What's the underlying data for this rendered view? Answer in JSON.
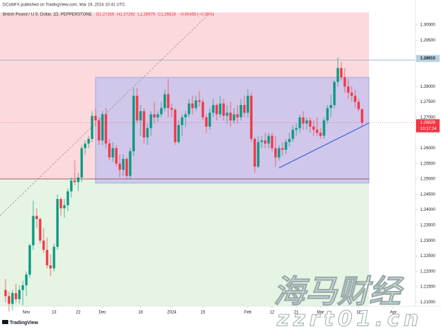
{
  "header": {
    "publisher": "DCottiFX published on TradingView.com, Mar 19, 2024 10:41 UTC",
    "logo": "TradingView"
  },
  "watermark": {
    "cn": "海马财经",
    "url": "zzrt01.cn"
  },
  "chart_data": {
    "type": "candlestick",
    "title": "British Pound / U.S. Dollar, 1D, PEPPERSTONE",
    "legend_values": [
      "O1.27265",
      "H1.27292",
      "L1.26675",
      "C1.26828",
      "−0.00456 (−0.36%)"
    ],
    "up_color": "#089981",
    "down_color": "#f23645",
    "grid": false,
    "xlim": [
      -1.6,
      118.4
    ],
    "xticks": [
      {
        "value": 6,
        "label": "Nov"
      },
      {
        "value": 14,
        "label": "13"
      },
      {
        "value": 21,
        "label": "22"
      },
      {
        "value": 28,
        "label": "Dec"
      },
      {
        "value": 39,
        "label": "18"
      },
      {
        "value": 48,
        "label": "2024"
      },
      {
        "value": 57,
        "label": "15"
      },
      {
        "value": 70,
        "label": "Feb"
      },
      {
        "value": 77,
        "label": "12"
      },
      {
        "value": 84,
        "label": "21"
      },
      {
        "value": 91,
        "label": "Mar"
      },
      {
        "value": 102,
        "label": "18"
      },
      {
        "value": 112,
        "label": "Apr"
      }
    ],
    "ylim": [
      1.20875,
      1.30404
    ],
    "yticks": [
      {
        "value": 1.3,
        "label": "1.30000"
      },
      {
        "value": 1.295,
        "label": "1.29500"
      },
      {
        "value": 1.28,
        "label": "1.28000"
      },
      {
        "value": 1.275,
        "label": "1.27500"
      },
      {
        "value": 1.27,
        "label": "1.27000"
      },
      {
        "value": 1.26,
        "label": "1.26000"
      },
      {
        "value": 1.255,
        "label": "1.25500"
      },
      {
        "value": 1.25,
        "label": "1.25000"
      },
      {
        "value": 1.245,
        "label": "1.24500"
      },
      {
        "value": 1.24,
        "label": "1.24000"
      },
      {
        "value": 1.235,
        "label": "1.23500"
      },
      {
        "value": 1.23,
        "label": "1.23000"
      },
      {
        "value": 1.225,
        "label": "1.22500"
      },
      {
        "value": 1.22,
        "label": "1.22000"
      },
      {
        "value": 1.215,
        "label": "1.21500"
      },
      {
        "value": 1.21,
        "label": "1.21000"
      }
    ],
    "level_label": {
      "value": 1.2891,
      "label": "1.28910"
    },
    "last_price": {
      "value": 1.26828,
      "label": "1.26828"
    },
    "countdown": "10:17:24",
    "ohlc": [
      [
        1.214,
        1.2175,
        1.21,
        1.212
      ],
      [
        1.212,
        1.2135,
        1.207,
        1.2095
      ],
      [
        1.2095,
        1.214,
        1.2075,
        1.213
      ],
      [
        1.213,
        1.216,
        1.21,
        1.211
      ],
      [
        1.211,
        1.2155,
        1.2095,
        1.214
      ],
      [
        1.214,
        1.217,
        1.209,
        1.2155
      ],
      [
        1.2155,
        1.22,
        1.212,
        1.219
      ],
      [
        1.219,
        1.229,
        1.218,
        1.2285
      ],
      [
        1.2285,
        1.243,
        1.227,
        1.238
      ],
      [
        1.238,
        1.2405,
        1.234,
        1.237
      ],
      [
        1.237,
        1.2375,
        1.229,
        1.23
      ],
      [
        1.23,
        1.234,
        1.226,
        1.227
      ],
      [
        1.227,
        1.231,
        1.221,
        1.222
      ],
      [
        1.222,
        1.2255,
        1.2185,
        1.221
      ],
      [
        1.221,
        1.229,
        1.22,
        1.228
      ],
      [
        1.228,
        1.245,
        1.227,
        1.2435
      ],
      [
        1.2435,
        1.244,
        1.238,
        1.2405
      ],
      [
        1.2405,
        1.2435,
        1.2375,
        1.2415
      ],
      [
        1.2415,
        1.247,
        1.2395,
        1.246
      ],
      [
        1.246,
        1.2505,
        1.244,
        1.2495
      ],
      [
        1.2495,
        1.256,
        1.248,
        1.249
      ],
      [
        1.249,
        1.252,
        1.246,
        1.2505
      ],
      [
        1.2505,
        1.261,
        1.249,
        1.26
      ],
      [
        1.26,
        1.2625,
        1.258,
        1.2615
      ],
      [
        1.2615,
        1.264,
        1.26,
        1.263
      ],
      [
        1.263,
        1.272,
        1.262,
        1.2705
      ],
      [
        1.2705,
        1.273,
        1.267,
        1.269
      ],
      [
        1.269,
        1.27,
        1.261,
        1.2625
      ],
      [
        1.2625,
        1.272,
        1.261,
        1.271
      ],
      [
        1.271,
        1.273,
        1.26,
        1.2615
      ],
      [
        1.2615,
        1.263,
        1.256,
        1.257
      ],
      [
        1.257,
        1.262,
        1.2555,
        1.26
      ],
      [
        1.26,
        1.261,
        1.254,
        1.255
      ],
      [
        1.255,
        1.258,
        1.2505,
        1.253
      ],
      [
        1.253,
        1.258,
        1.251,
        1.2565
      ],
      [
        1.2565,
        1.257,
        1.25,
        1.251
      ],
      [
        1.251,
        1.26,
        1.25,
        1.259
      ],
      [
        1.259,
        1.2795,
        1.2575,
        1.277
      ],
      [
        1.277,
        1.2795,
        1.268,
        1.269
      ],
      [
        1.269,
        1.274,
        1.264,
        1.272
      ],
      [
        1.272,
        1.273,
        1.2615,
        1.2635
      ],
      [
        1.2635,
        1.268,
        1.261,
        1.2665
      ],
      [
        1.2665,
        1.272,
        1.264,
        1.271
      ],
      [
        1.271,
        1.275,
        1.268,
        1.27
      ],
      [
        1.27,
        1.272,
        1.2685,
        1.271
      ],
      [
        1.271,
        1.275,
        1.27,
        1.273
      ],
      [
        1.273,
        1.279,
        1.272,
        1.2775
      ],
      [
        1.2775,
        1.2825,
        1.27,
        1.273
      ],
      [
        1.273,
        1.2745,
        1.27,
        1.2725
      ],
      [
        1.2725,
        1.273,
        1.261,
        1.262
      ],
      [
        1.262,
        1.269,
        1.2615,
        1.2675
      ],
      [
        1.2675,
        1.271,
        1.264,
        1.27
      ],
      [
        1.27,
        1.272,
        1.267,
        1.271
      ],
      [
        1.271,
        1.276,
        1.27,
        1.2745
      ],
      [
        1.2745,
        1.277,
        1.271,
        1.273
      ],
      [
        1.273,
        1.277,
        1.272,
        1.2755
      ],
      [
        1.2755,
        1.2785,
        1.2735,
        1.275
      ],
      [
        1.275,
        1.276,
        1.269,
        1.27
      ],
      [
        1.27,
        1.271,
        1.265,
        1.267
      ],
      [
        1.267,
        1.273,
        1.266,
        1.2715
      ],
      [
        1.2715,
        1.276,
        1.27,
        1.274
      ],
      [
        1.274,
        1.2745,
        1.269,
        1.271
      ],
      [
        1.271,
        1.277,
        1.27,
        1.2745
      ],
      [
        1.2745,
        1.276,
        1.269,
        1.2705
      ],
      [
        1.2705,
        1.274,
        1.268,
        1.2715
      ],
      [
        1.2715,
        1.275,
        1.267,
        1.269
      ],
      [
        1.269,
        1.273,
        1.268,
        1.271
      ],
      [
        1.271,
        1.274,
        1.268,
        1.27
      ],
      [
        1.27,
        1.276,
        1.269,
        1.274
      ],
      [
        1.274,
        1.277,
        1.27,
        1.2715
      ],
      [
        1.2715,
        1.279,
        1.27,
        1.277
      ],
      [
        1.277,
        1.278,
        1.262,
        1.263
      ],
      [
        1.263,
        1.2635,
        1.252,
        1.254
      ],
      [
        1.254,
        1.264,
        1.2535,
        1.262
      ],
      [
        1.262,
        1.264,
        1.26,
        1.2625
      ],
      [
        1.2625,
        1.265,
        1.26,
        1.2615
      ],
      [
        1.2615,
        1.265,
        1.26,
        1.264
      ],
      [
        1.264,
        1.265,
        1.259,
        1.26
      ],
      [
        1.26,
        1.264,
        1.254,
        1.257
      ],
      [
        1.257,
        1.261,
        1.256,
        1.26
      ],
      [
        1.26,
        1.262,
        1.2575,
        1.2595
      ],
      [
        1.2595,
        1.263,
        1.258,
        1.262
      ],
      [
        1.262,
        1.265,
        1.2605,
        1.263
      ],
      [
        1.263,
        1.2675,
        1.262,
        1.266
      ],
      [
        1.266,
        1.268,
        1.264,
        1.2665
      ],
      [
        1.2665,
        1.271,
        1.265,
        1.27
      ],
      [
        1.27,
        1.272,
        1.266,
        1.268
      ],
      [
        1.268,
        1.27,
        1.266,
        1.269
      ],
      [
        1.269,
        1.27,
        1.265,
        1.267
      ],
      [
        1.267,
        1.269,
        1.264,
        1.266
      ],
      [
        1.266,
        1.27,
        1.264,
        1.265
      ],
      [
        1.265,
        1.2665,
        1.263,
        1.264
      ],
      [
        1.264,
        1.27,
        1.263,
        1.269
      ],
      [
        1.269,
        1.274,
        1.268,
        1.273
      ],
      [
        1.273,
        1.2775,
        1.27,
        1.274
      ],
      [
        1.274,
        1.282,
        1.273,
        1.2815
      ],
      [
        1.2815,
        1.2895,
        1.28,
        1.286
      ],
      [
        1.286,
        1.288,
        1.282,
        1.283
      ],
      [
        1.283,
        1.286,
        1.278,
        1.28
      ],
      [
        1.28,
        1.2825,
        1.276,
        1.278
      ],
      [
        1.278,
        1.28,
        1.275,
        1.277
      ],
      [
        1.277,
        1.279,
        1.273,
        1.275
      ],
      [
        1.275,
        1.276,
        1.272,
        1.2727
      ],
      [
        1.27265,
        1.27292,
        1.26675,
        1.26828
      ]
    ]
  }
}
